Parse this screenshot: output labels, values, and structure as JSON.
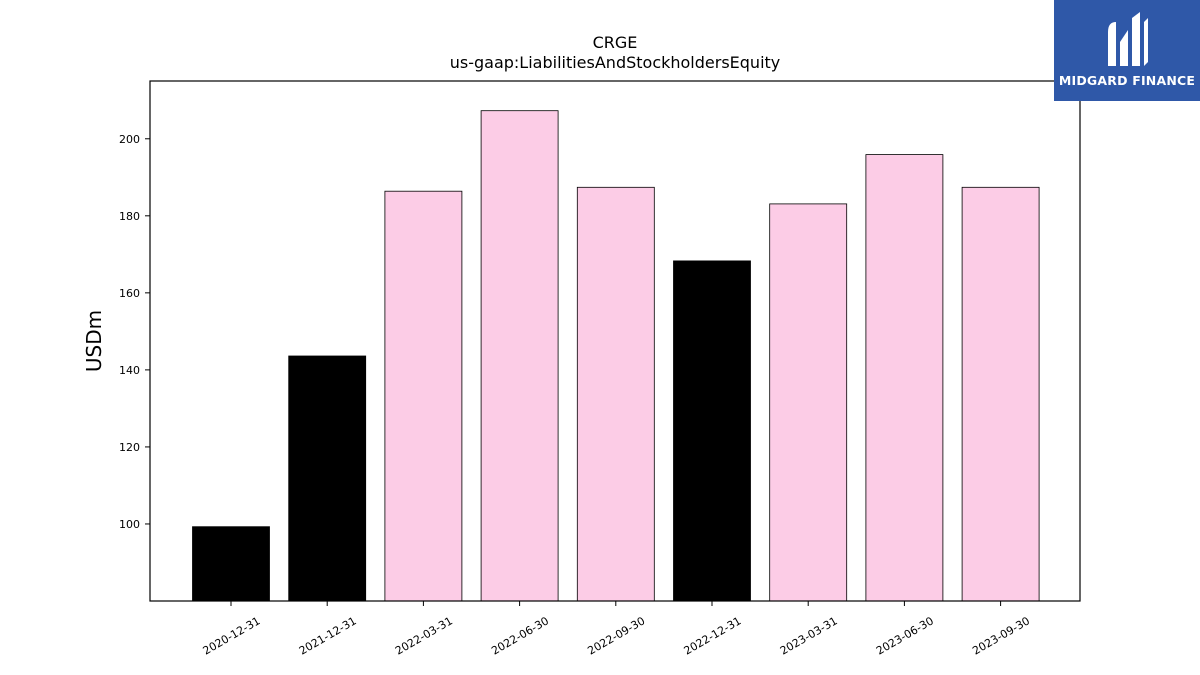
{
  "chart_data": {
    "type": "bar",
    "title": "CRGE",
    "subtitle": "us-gaap:LiabilitiesAndStockholdersEquity",
    "xlabel": "",
    "ylabel": "USDm",
    "categories": [
      "2020-12-31",
      "2021-12-31",
      "2022-03-31",
      "2022-06-30",
      "2022-09-30",
      "2022-12-31",
      "2023-03-31",
      "2023-06-30",
      "2023-09-30"
    ],
    "values": [
      99.3,
      143.6,
      186.4,
      207.3,
      187.4,
      168.3,
      183.1,
      195.9,
      187.4
    ],
    "period_types": [
      "annual",
      "annual",
      "quarterly",
      "quarterly",
      "quarterly",
      "annual",
      "quarterly",
      "quarterly",
      "quarterly"
    ],
    "ylim": [
      80,
      215
    ],
    "yticks": [
      100,
      120,
      140,
      160,
      180,
      200
    ],
    "grid": false,
    "colors": {
      "annual": "#000000",
      "quarterly": "#fccce6",
      "edge": "#000000"
    }
  },
  "logo": {
    "text": "MIDGARD FINANCE",
    "background": "#2f58a8"
  }
}
